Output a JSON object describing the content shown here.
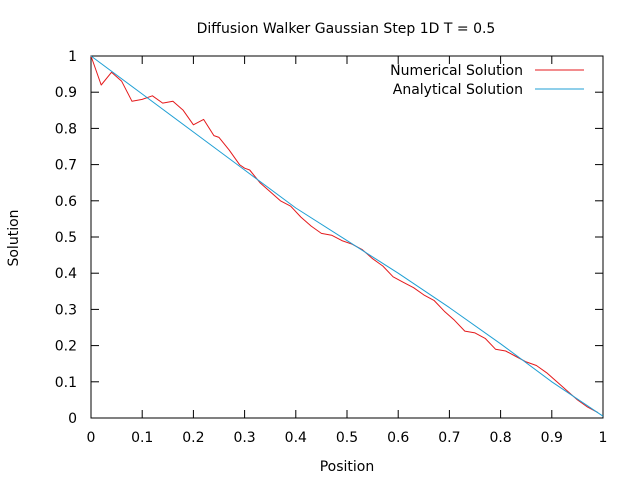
{
  "chart_data": {
    "type": "line",
    "title": "Diffusion Walker Gaussian Step 1D T = 0.5",
    "xlabel": "Position",
    "ylabel": "Solution",
    "xlim": [
      0,
      1
    ],
    "ylim": [
      0,
      1
    ],
    "xticks": [
      "0",
      "0.1",
      "0.2",
      "0.3",
      "0.4",
      "0.5",
      "0.6",
      "0.7",
      "0.8",
      "0.9",
      "1"
    ],
    "yticks": [
      "0",
      "0.1",
      "0.2",
      "0.3",
      "0.4",
      "0.5",
      "0.6",
      "0.7",
      "0.8",
      "0.9",
      "1"
    ],
    "grid": false,
    "legend_position": "top-right",
    "series": [
      {
        "name": "Numerical Solution",
        "color": "#e41a1c",
        "x": [
          0,
          0.02,
          0.04,
          0.06,
          0.08,
          0.1,
          0.12,
          0.14,
          0.16,
          0.18,
          0.2,
          0.22,
          0.24,
          0.25,
          0.27,
          0.29,
          0.3,
          0.31,
          0.33,
          0.35,
          0.37,
          0.39,
          0.41,
          0.43,
          0.45,
          0.47,
          0.49,
          0.51,
          0.53,
          0.55,
          0.57,
          0.59,
          0.61,
          0.63,
          0.65,
          0.67,
          0.69,
          0.71,
          0.73,
          0.75,
          0.77,
          0.79,
          0.81,
          0.83,
          0.85,
          0.87,
          0.89,
          0.91,
          0.93,
          0.95,
          0.97,
          0.99
        ],
        "values": [
          1.0,
          0.92,
          0.955,
          0.93,
          0.875,
          0.88,
          0.89,
          0.87,
          0.875,
          0.85,
          0.81,
          0.825,
          0.78,
          0.775,
          0.74,
          0.7,
          0.69,
          0.685,
          0.65,
          0.625,
          0.6,
          0.585,
          0.555,
          0.53,
          0.51,
          0.505,
          0.49,
          0.48,
          0.465,
          0.44,
          0.42,
          0.39,
          0.375,
          0.36,
          0.34,
          0.325,
          0.295,
          0.27,
          0.24,
          0.235,
          0.22,
          0.19,
          0.185,
          0.17,
          0.155,
          0.145,
          0.125,
          0.1,
          0.075,
          0.05,
          0.03,
          0.015
        ]
      },
      {
        "name": "Analytical Solution",
        "color": "#1f9fd4",
        "x": [
          0,
          0.1,
          0.2,
          0.3,
          0.4,
          0.5,
          0.6,
          0.7,
          0.8,
          0.9,
          1.0
        ],
        "values": [
          1.0,
          0.895,
          0.79,
          0.685,
          0.58,
          0.49,
          0.4,
          0.305,
          0.205,
          0.1,
          0.005
        ]
      }
    ]
  }
}
